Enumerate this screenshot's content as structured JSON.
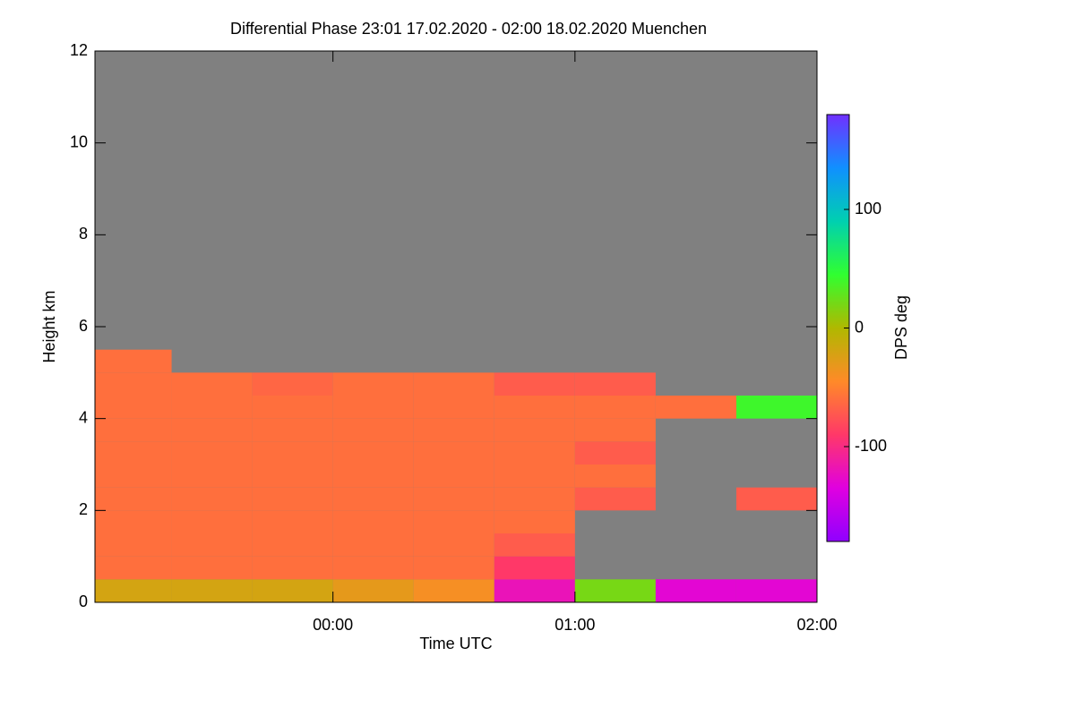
{
  "chart_data": {
    "type": "heatmap",
    "title": "Differential Phase   23:01 17.02.2020 - 02:00 18.02.2020 Muenchen",
    "xlabel": "Time UTC",
    "ylabel": "Height km",
    "colorbar_label": "DPS deg",
    "xlim": [
      "2020-02-17T23:01",
      "2020-02-18T02:00"
    ],
    "xticks": [
      {
        "value": "2020-02-18T00:00",
        "label": "00:00"
      },
      {
        "value": "2020-02-18T01:00",
        "label": "01:00"
      },
      {
        "value": "2020-02-18T02:00",
        "label": "02:00"
      }
    ],
    "ylim": [
      0,
      12
    ],
    "yticks": [
      0,
      2,
      4,
      6,
      8,
      10,
      12
    ],
    "zlim": [
      -180,
      180
    ],
    "zticks": [
      -100,
      0,
      100
    ],
    "colormap": [
      "#9000ff",
      "#e000e0",
      "#ff3868",
      "#ff8a28",
      "#b0b800",
      "#30ff30",
      "#00d0b0",
      "#1090ff",
      "#7030ff"
    ],
    "missing_color": "#808080",
    "x_bins": [
      "2020-02-17T23:01",
      "2020-02-17T23:20",
      "2020-02-17T23:40",
      "2020-02-18T00:00",
      "2020-02-18T00:20",
      "2020-02-18T00:40",
      "2020-02-18T01:00",
      "2020-02-18T01:20",
      "2020-02-18T01:40",
      "2020-02-18T02:00"
    ],
    "y_bins": [
      0,
      0.5,
      1,
      1.5,
      2,
      2.5,
      3,
      3.5,
      4,
      4.5,
      5,
      5.5,
      6
    ],
    "values": [
      [
        -20,
        -20,
        -20,
        -30,
        -40,
        -120,
        20,
        -130,
        -130
      ],
      [
        -60,
        -60,
        -60,
        -60,
        -60,
        -90,
        null,
        null,
        null
      ],
      [
        -60,
        -60,
        -60,
        -60,
        -60,
        -70,
        null,
        null,
        null
      ],
      [
        -60,
        -60,
        -60,
        -60,
        -60,
        -60,
        null,
        null,
        null
      ],
      [
        -60,
        -60,
        -60,
        -60,
        -60,
        -60,
        -70,
        null,
        -70
      ],
      [
        -60,
        -60,
        -60,
        -60,
        -60,
        -60,
        -60,
        null,
        null
      ],
      [
        -60,
        -60,
        -60,
        -60,
        -60,
        -60,
        -70,
        null,
        null
      ],
      [
        -60,
        -60,
        -60,
        -60,
        -60,
        -60,
        -60,
        null,
        null
      ],
      [
        -60,
        -60,
        -60,
        -60,
        -60,
        -60,
        -60,
        -60,
        40
      ],
      [
        -60,
        -60,
        -65,
        -60,
        -60,
        -70,
        -70,
        null,
        null
      ],
      [
        -60,
        null,
        null,
        null,
        null,
        null,
        null,
        null,
        null
      ],
      [
        null,
        null,
        null,
        null,
        null,
        null,
        null,
        null,
        null
      ]
    ]
  }
}
